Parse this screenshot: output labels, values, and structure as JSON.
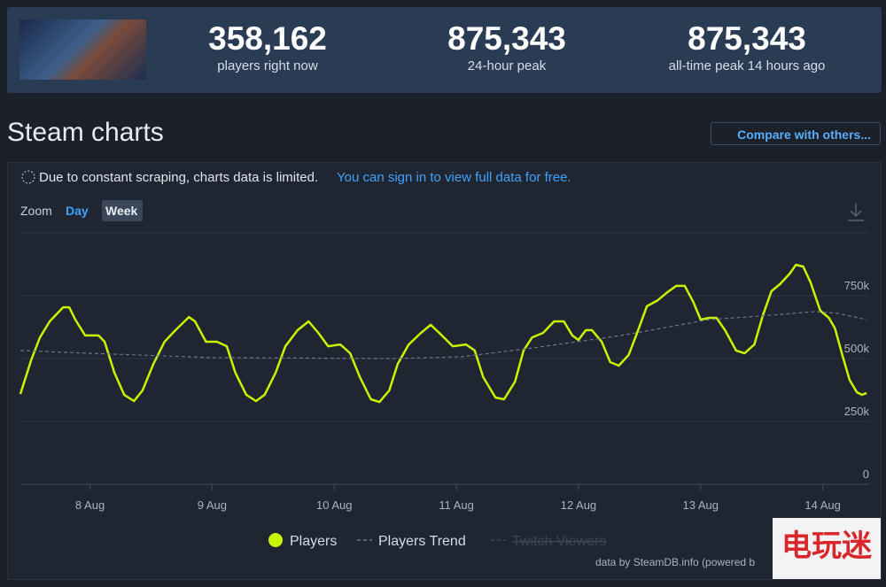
{
  "header": {
    "stats": [
      {
        "value": "358,162",
        "label": "players right now"
      },
      {
        "value": "875,343",
        "label": "24-hour peak"
      },
      {
        "value": "875,343",
        "label": "all-time peak 14 hours ago"
      }
    ]
  },
  "section_title": "Steam charts",
  "compare_button": "Compare with others...",
  "notice": {
    "text": "Due to constant scraping, charts data is limited.",
    "link": "You can sign in to view full data for free."
  },
  "zoom": {
    "label": "Zoom",
    "options": [
      "Day",
      "Week"
    ]
  },
  "chart_data": {
    "type": "line",
    "xlim": [
      7.43,
      14.38
    ],
    "xticks": [
      {
        "value": 8,
        "label": "8 Aug"
      },
      {
        "value": 9,
        "label": "9 Aug"
      },
      {
        "value": 10,
        "label": "10 Aug"
      },
      {
        "value": 11,
        "label": "11 Aug"
      },
      {
        "value": 12,
        "label": "12 Aug"
      },
      {
        "value": 13,
        "label": "13 Aug"
      },
      {
        "value": 14,
        "label": "14 Aug"
      }
    ],
    "ylim": [
      0,
      1000000
    ],
    "yticks": [
      0,
      {
        "value": 250000,
        "label": "250k"
      },
      {
        "value": 500000,
        "label": "500k"
      },
      {
        "value": 750000,
        "label": "750k"
      }
    ],
    "grid": true,
    "series": [
      {
        "name": "Players",
        "color": "#c8f400",
        "x": [
          7.43,
          7.52,
          7.59,
          7.67,
          7.78,
          7.83,
          7.88,
          7.96,
          8.07,
          8.12,
          8.2,
          8.28,
          8.36,
          8.43,
          8.52,
          8.61,
          8.7,
          8.81,
          8.86,
          8.95,
          9.04,
          9.12,
          9.19,
          9.28,
          9.36,
          9.43,
          9.52,
          9.6,
          9.7,
          9.79,
          9.87,
          9.95,
          10.05,
          10.13,
          10.21,
          10.3,
          10.37,
          10.45,
          10.52,
          10.61,
          10.71,
          10.79,
          10.86,
          10.97,
          11.08,
          11.15,
          11.22,
          11.32,
          11.39,
          11.48,
          11.55,
          11.62,
          11.71,
          11.8,
          11.88,
          11.95,
          12.0,
          12.06,
          12.11,
          12.19,
          12.26,
          12.33,
          12.41,
          12.48,
          12.56,
          12.65,
          12.72,
          12.8,
          12.87,
          12.94,
          13.0,
          13.07,
          13.13,
          13.2,
          13.29,
          13.36,
          13.44,
          13.51,
          13.58,
          13.65,
          13.73,
          13.78,
          13.84,
          13.9,
          13.98,
          14.05,
          14.1,
          14.16,
          14.22,
          14.28,
          14.32,
          14.36
        ],
        "values": [
          359000,
          496000,
          584000,
          648000,
          704000,
          704000,
          655000,
          592000,
          592000,
          567000,
          444000,
          356000,
          331000,
          373000,
          479000,
          567000,
          613000,
          665000,
          648000,
          567000,
          567000,
          549000,
          444000,
          356000,
          331000,
          356000,
          444000,
          549000,
          613000,
          648000,
          602000,
          549000,
          556000,
          521000,
          426000,
          338000,
          327000,
          373000,
          479000,
          556000,
          602000,
          634000,
          602000,
          549000,
          556000,
          532000,
          426000,
          345000,
          338000,
          408000,
          532000,
          584000,
          602000,
          648000,
          648000,
          592000,
          574000,
          613000,
          613000,
          567000,
          486000,
          472000,
          514000,
          602000,
          708000,
          732000,
          761000,
          789000,
          789000,
          725000,
          655000,
          662000,
          662000,
          613000,
          532000,
          521000,
          556000,
          673000,
          768000,
          796000,
          838000,
          873000,
          866000,
          803000,
          690000,
          662000,
          620000,
          514000,
          415000,
          366000,
          356000,
          363000
        ]
      },
      {
        "name": "Players Trend",
        "color": "#6b7689",
        "dashed": true,
        "x": [
          7.43,
          7.99,
          9.01,
          10.46,
          11.04,
          11.62,
          12.35,
          13.07,
          13.58,
          13.94,
          14.12,
          14.36
        ],
        "values": [
          532000,
          521000,
          504000,
          500000,
          507000,
          542000,
          592000,
          655000,
          673000,
          687000,
          680000,
          655000
        ]
      },
      {
        "name": "Twitch Viewers",
        "color": "#3b4658",
        "hidden": true,
        "x": [],
        "values": []
      }
    ]
  },
  "footer": "data by SteamDB.info (powered b",
  "watermark": "电玩迷"
}
